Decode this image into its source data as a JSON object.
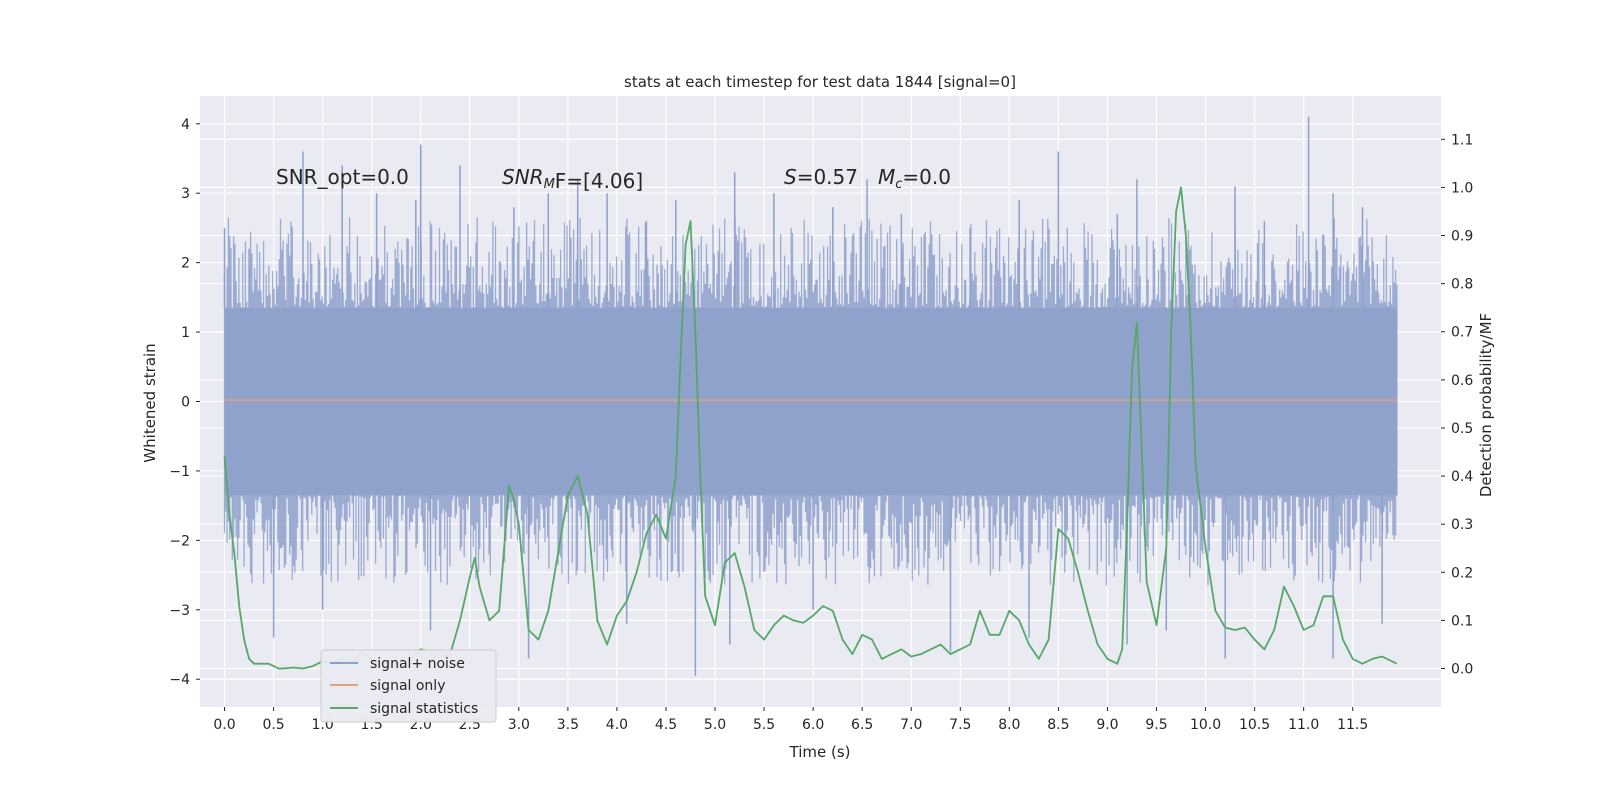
{
  "chart_data": {
    "type": "line",
    "title": "stats at each timestep for test data 1844 [signal=0]",
    "xlabel": "Time (s)",
    "ylabel": "Whitened strain",
    "y2label": "Detection probability/MF",
    "xlim": [
      -0.25,
      12.4
    ],
    "ylim": [
      -4.4,
      4.4
    ],
    "y2lim": [
      -0.08,
      1.19
    ],
    "x_ticks": [
      0,
      0.5,
      1,
      1.5,
      2,
      2.5,
      3,
      3.5,
      4,
      4.5,
      5,
      5.5,
      6,
      6.5,
      7,
      7.5,
      8,
      8.5,
      9,
      9.5,
      10,
      10.5,
      11,
      11.5
    ],
    "x_tick_labels": [
      "0.0",
      "0.5",
      "1.0",
      "1.5",
      "2.0",
      "2.5",
      "3.0",
      "3.5",
      "4.0",
      "4.5",
      "5.0",
      "5.5",
      "6.0",
      "6.5",
      "7.0",
      "7.5",
      "8.0",
      "8.5",
      "9.0",
      "9.5",
      "10.0",
      "10.5",
      "11.0",
      "11.5"
    ],
    "y_ticks": [
      4,
      3,
      2,
      1,
      0,
      -1,
      -2,
      -3,
      -4
    ],
    "y_tick_labels": [
      "4",
      "3",
      "2",
      "1",
      "0",
      "−1",
      "−2",
      "−3",
      "−4"
    ],
    "y2_ticks": [
      1.1,
      1.0,
      0.9,
      0.8,
      0.7,
      0.6,
      0.5,
      0.4,
      0.3,
      0.2,
      0.1,
      0.0
    ],
    "y2_tick_labels": [
      "1.1",
      "1.0",
      "0.9",
      "0.8",
      "0.7",
      "0.6",
      "0.5",
      "0.4",
      "0.3",
      "0.2",
      "0.1",
      "0.0"
    ],
    "grid": true,
    "legend_position": "bottom-left",
    "annotations": {
      "snr_opt": "SNR_opt=0.0",
      "snr_mf_main": "SNR",
      "snr_mf_sub": "M",
      "snr_mf_rest": "F=[4.06]",
      "s_label": "S",
      "s_value": "=0.57",
      "mc_label": "M",
      "mc_sub": "c",
      "mc_value": "=0.0"
    },
    "noise": {
      "name": "signal+ noise",
      "color": "#8da0cb",
      "x_range": [
        0,
        11.95
      ],
      "core_amplitude": 1.35,
      "peak_x": [
        0.0,
        0.25,
        0.8,
        1.2,
        1.55,
        1.95,
        2.0,
        2.4,
        2.95,
        3.3,
        3.6,
        3.9,
        4.3,
        4.6,
        5.2,
        5.6,
        6.2,
        6.55,
        6.9,
        7.6,
        8.1,
        8.5,
        9.1,
        9.3,
        10.3,
        10.6,
        11.05,
        11.3,
        11.6
      ],
      "peak_y": [
        2.5,
        2.2,
        3.6,
        3.4,
        3.0,
        2.9,
        3.7,
        3.4,
        2.8,
        3.0,
        3.2,
        3.0,
        2.6,
        2.9,
        3.3,
        3.0,
        2.8,
        3.2,
        2.7,
        2.5,
        2.9,
        3.6,
        2.7,
        3.2,
        3.1,
        2.6,
        4.1,
        3.0,
        2.8
      ],
      "trough_x": [
        0.5,
        1.0,
        2.1,
        3.1,
        4.1,
        4.8,
        5.15,
        6.0,
        7.4,
        8.2,
        9.2,
        9.6,
        10.2,
        11.3,
        11.8
      ],
      "trough_y": [
        -3.4,
        -3.0,
        -3.3,
        -3.7,
        -3.2,
        -3.95,
        -3.5,
        -3.0,
        -3.6,
        -3.4,
        -3.5,
        -3.3,
        -3.7,
        -3.7,
        -3.2
      ]
    },
    "series": [
      {
        "name": "signal only",
        "color": "#e5a27f",
        "axis": "left",
        "x": [
          0,
          11.95
        ],
        "y": [
          0.02,
          0.02
        ]
      },
      {
        "name": "signal statistics",
        "color": "#55a868",
        "axis": "right",
        "x": [
          0.0,
          0.05,
          0.1,
          0.15,
          0.2,
          0.25,
          0.3,
          0.35,
          0.4,
          0.45,
          0.5,
          0.55,
          0.6,
          0.7,
          0.8,
          0.9,
          1.0,
          1.1,
          1.2,
          1.3,
          1.4,
          1.5,
          1.6,
          1.7,
          1.8,
          1.9,
          2.0,
          2.1,
          2.2,
          2.3,
          2.4,
          2.5,
          2.55,
          2.6,
          2.7,
          2.8,
          2.9,
          2.95,
          3.0,
          3.1,
          3.2,
          3.3,
          3.4,
          3.5,
          3.6,
          3.7,
          3.8,
          3.9,
          4.0,
          4.1,
          4.2,
          4.3,
          4.4,
          4.5,
          4.6,
          4.65,
          4.7,
          4.75,
          4.8,
          4.85,
          4.9,
          5.0,
          5.1,
          5.2,
          5.3,
          5.4,
          5.5,
          5.6,
          5.7,
          5.8,
          5.9,
          6.0,
          6.1,
          6.2,
          6.3,
          6.4,
          6.5,
          6.6,
          6.7,
          6.8,
          6.9,
          7.0,
          7.1,
          7.2,
          7.3,
          7.4,
          7.5,
          7.6,
          7.7,
          7.8,
          7.9,
          8.0,
          8.1,
          8.2,
          8.3,
          8.4,
          8.5,
          8.6,
          8.7,
          8.8,
          8.9,
          9.0,
          9.1,
          9.15,
          9.2,
          9.25,
          9.3,
          9.35,
          9.4,
          9.5,
          9.6,
          9.65,
          9.7,
          9.75,
          9.8,
          9.85,
          9.9,
          10.0,
          10.1,
          10.2,
          10.3,
          10.4,
          10.5,
          10.6,
          10.7,
          10.8,
          10.9,
          11.0,
          11.1,
          11.2,
          11.3,
          11.4,
          11.5,
          11.6,
          11.7,
          11.8,
          11.95
        ],
        "y": [
          0.44,
          0.32,
          0.24,
          0.13,
          0.06,
          0.02,
          0.01,
          0.01,
          0.01,
          0.01,
          0.005,
          0.0,
          0.0,
          0.002,
          0.0,
          0.005,
          0.015,
          0.01,
          0.02,
          0.01,
          0.035,
          0.02,
          0.01,
          0.01,
          0.01,
          0.02,
          0.04,
          0.035,
          0.025,
          0.03,
          0.1,
          0.19,
          0.23,
          0.17,
          0.1,
          0.12,
          0.38,
          0.35,
          0.3,
          0.08,
          0.06,
          0.12,
          0.24,
          0.36,
          0.4,
          0.32,
          0.1,
          0.05,
          0.11,
          0.14,
          0.2,
          0.28,
          0.32,
          0.27,
          0.4,
          0.65,
          0.88,
          0.93,
          0.7,
          0.4,
          0.15,
          0.09,
          0.22,
          0.24,
          0.17,
          0.08,
          0.06,
          0.09,
          0.11,
          0.1,
          0.095,
          0.11,
          0.13,
          0.12,
          0.06,
          0.03,
          0.07,
          0.06,
          0.02,
          0.03,
          0.04,
          0.025,
          0.03,
          0.04,
          0.05,
          0.03,
          0.04,
          0.05,
          0.12,
          0.07,
          0.07,
          0.12,
          0.1,
          0.05,
          0.02,
          0.06,
          0.29,
          0.27,
          0.2,
          0.12,
          0.05,
          0.02,
          0.01,
          0.04,
          0.3,
          0.62,
          0.72,
          0.45,
          0.18,
          0.09,
          0.25,
          0.7,
          0.95,
          1.0,
          0.9,
          0.7,
          0.42,
          0.25,
          0.12,
          0.085,
          0.08,
          0.085,
          0.06,
          0.04,
          0.08,
          0.17,
          0.13,
          0.08,
          0.09,
          0.15,
          0.15,
          0.06,
          0.02,
          0.01,
          0.02,
          0.025,
          0.01
        ]
      }
    ],
    "legend": [
      {
        "label": "signal+ noise",
        "color": "#8da0cb"
      },
      {
        "label": "signal only",
        "color": "#e5a27f"
      },
      {
        "label": "signal statistics",
        "color": "#55a868"
      }
    ]
  }
}
